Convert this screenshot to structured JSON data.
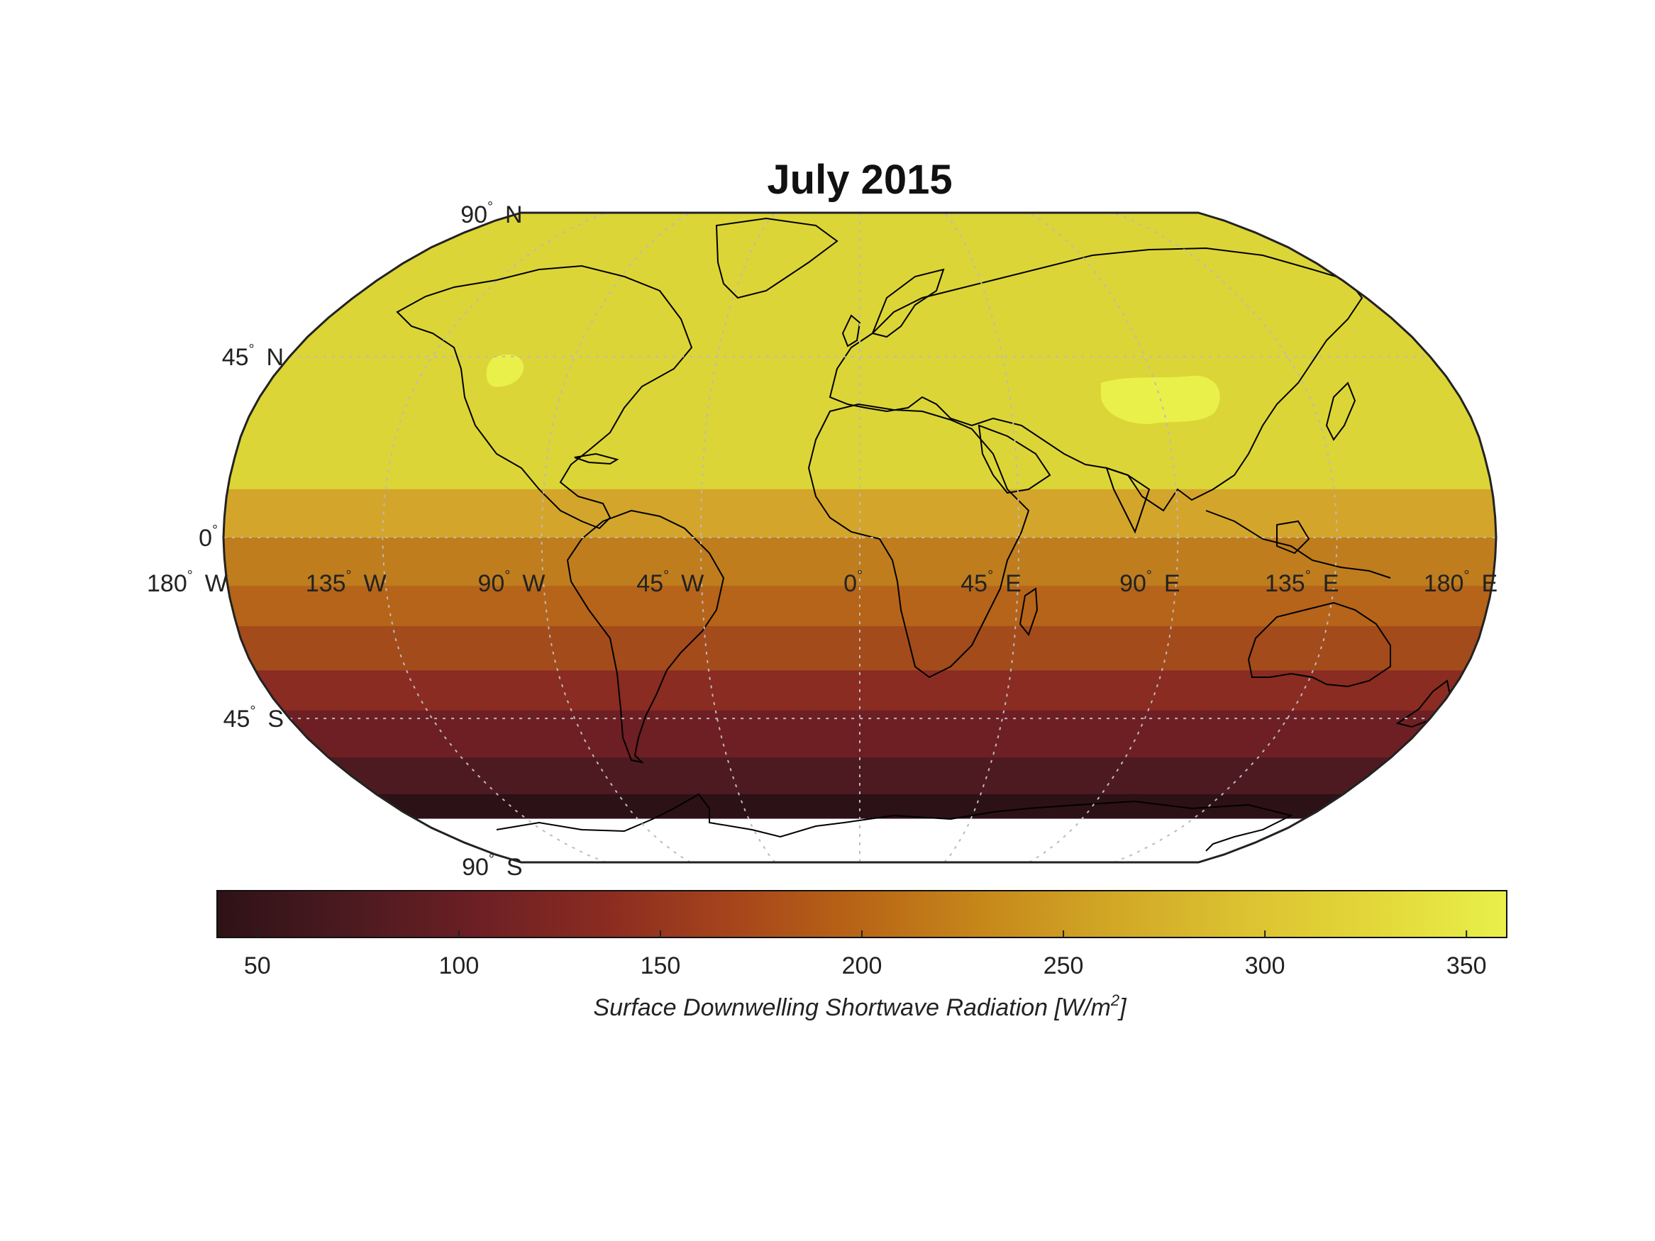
{
  "title": "July 2015",
  "lat_labels": [
    {
      "value": "90",
      "hemi": "N"
    },
    {
      "value": "45",
      "hemi": "N"
    },
    {
      "value": "0",
      "hemi": ""
    },
    {
      "value": "45",
      "hemi": "S"
    },
    {
      "value": "90",
      "hemi": "S"
    }
  ],
  "lon_labels": [
    {
      "value": "180",
      "hemi": "W"
    },
    {
      "value": "135",
      "hemi": "W"
    },
    {
      "value": "90",
      "hemi": "W"
    },
    {
      "value": "45",
      "hemi": "W"
    },
    {
      "value": "0",
      "hemi": ""
    },
    {
      "value": "45",
      "hemi": "E"
    },
    {
      "value": "90",
      "hemi": "E"
    },
    {
      "value": "135",
      "hemi": "E"
    },
    {
      "value": "180",
      "hemi": "E"
    }
  ],
  "colorbar": {
    "label_prefix": "Surface Downwelling Shortwave Radiation [W/m",
    "label_sup": "2",
    "label_suffix": "]",
    "min": 40,
    "max": 360,
    "ticks": [
      "50",
      "100",
      "150",
      "200",
      "250",
      "300",
      "350"
    ],
    "colors": [
      "#2e1216",
      "#4a1a20",
      "#6c1f24",
      "#8a2b21",
      "#a6451b",
      "#b96616",
      "#c78a1b",
      "#d2a927",
      "#dcc331",
      "#e3d83a",
      "#e9f04a"
    ]
  },
  "chart_data": {
    "type": "heatmap",
    "projection": "Robinson",
    "title": "July 2015",
    "colorbar_label": "Surface Downwelling Shortwave Radiation [W/m2]",
    "colorbar_range": [
      40,
      360
    ],
    "colorbar_ticks": [
      50,
      100,
      150,
      200,
      250,
      300,
      350
    ],
    "latitude_range": [
      -90,
      90
    ],
    "longitude_range": [
      -180,
      180
    ],
    "latitude_ticks": [
      90,
      45,
      0,
      -45,
      -90
    ],
    "longitude_ticks": [
      -180,
      -135,
      -90,
      -45,
      0,
      45,
      90,
      135,
      180
    ],
    "grid": true,
    "bands": [
      {
        "lat_from": 90,
        "lat_to": 12,
        "value": 310,
        "color": "#dcd537"
      },
      {
        "lat_from": 12,
        "lat_to": 0,
        "value": 255,
        "color": "#d4a52b"
      },
      {
        "lat_from": 0,
        "lat_to": -12,
        "value": 220,
        "color": "#bf7d1e"
      },
      {
        "lat_from": -12,
        "lat_to": -22,
        "value": 190,
        "color": "#b66419"
      },
      {
        "lat_from": -22,
        "lat_to": -33,
        "value": 160,
        "color": "#a34b1b"
      },
      {
        "lat_from": -33,
        "lat_to": -43,
        "value": 125,
        "color": "#8a2c22"
      },
      {
        "lat_from": -43,
        "lat_to": -55,
        "value": 90,
        "color": "#6e1f24"
      },
      {
        "lat_from": -55,
        "lat_to": -65,
        "value": 55,
        "color": "#4e1a21"
      },
      {
        "lat_from": -65,
        "lat_to": -72,
        "value": 45,
        "color": "#2c1116"
      }
    ],
    "local_maxima": [
      {
        "region": "Western North America",
        "value": 340,
        "color": "#e9f04a"
      },
      {
        "region": "Tibetan Plateau",
        "value": 345,
        "color": "#e9f04a"
      }
    ],
    "no_data_region": "Antarctica (south of about 70 S)"
  }
}
